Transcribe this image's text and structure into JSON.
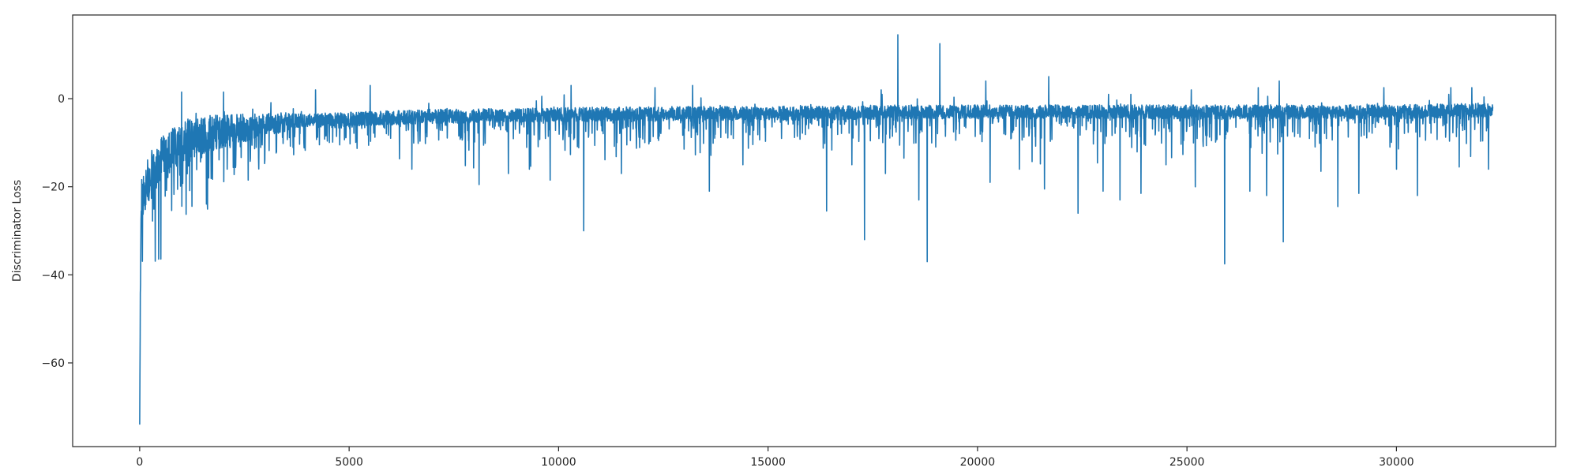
{
  "chart_data": {
    "type": "line",
    "title": "",
    "xlabel": "",
    "ylabel": "Discriminator Loss",
    "xlim": [
      -1600,
      33800
    ],
    "ylim": [
      -79,
      19
    ],
    "xticks": [
      0,
      5000,
      10000,
      15000,
      20000,
      25000,
      30000
    ],
    "xtick_labels": [
      "0",
      "5000",
      "10000",
      "15000",
      "20000",
      "25000",
      "30000"
    ],
    "yticks": [
      0,
      -20,
      -40,
      -60
    ],
    "ytick_labels": [
      "0",
      "−20",
      "−40",
      "−60"
    ],
    "grid": false,
    "legend": "none",
    "series_color": "#1f77b4",
    "series": [
      {
        "x_start": 0,
        "x_end": 32300,
        "baseline": [
          [
            0,
            -74
          ],
          [
            30,
            -25
          ],
          [
            80,
            -22
          ],
          [
            150,
            -20
          ],
          [
            250,
            -18
          ],
          [
            350,
            -16
          ],
          [
            500,
            -14
          ],
          [
            700,
            -12
          ],
          [
            900,
            -10.5
          ],
          [
            1200,
            -9
          ],
          [
            1600,
            -8
          ],
          [
            2200,
            -7
          ],
          [
            3000,
            -6
          ],
          [
            4000,
            -5
          ],
          [
            5500,
            -4.5
          ],
          [
            7000,
            -4
          ],
          [
            9000,
            -3.8
          ],
          [
            11000,
            -3.5
          ],
          [
            14000,
            -3.3
          ],
          [
            16000,
            -3.3
          ],
          [
            18000,
            -3
          ],
          [
            20000,
            -3
          ],
          [
            25000,
            -3
          ],
          [
            30000,
            -3
          ],
          [
            32300,
            -2.5
          ]
        ],
        "spikes_down": [
          [
            6500,
            -16
          ],
          [
            8100,
            -19.5
          ],
          [
            8800,
            -17
          ],
          [
            9300,
            -16
          ],
          [
            9800,
            -18.5
          ],
          [
            10300,
            -19.5
          ],
          [
            10600,
            -30
          ],
          [
            11500,
            -17
          ],
          [
            13600,
            -21
          ],
          [
            14400,
            -15
          ],
          [
            16400,
            -25.5
          ],
          [
            17000,
            -15
          ],
          [
            17300,
            -32
          ],
          [
            17800,
            -17
          ],
          [
            18600,
            -23
          ],
          [
            18800,
            -37
          ],
          [
            20300,
            -19
          ],
          [
            21000,
            -16
          ],
          [
            21600,
            -20.5
          ],
          [
            22400,
            -26
          ],
          [
            23000,
            -21
          ],
          [
            23400,
            -23
          ],
          [
            23900,
            -21.5
          ],
          [
            24500,
            -15
          ],
          [
            25200,
            -20
          ],
          [
            25900,
            -37.5
          ],
          [
            26500,
            -21
          ],
          [
            26900,
            -22
          ],
          [
            27300,
            -32.5
          ],
          [
            28200,
            -16.5
          ],
          [
            28600,
            -24.5
          ],
          [
            29100,
            -21.5
          ],
          [
            30000,
            -16
          ],
          [
            30500,
            -22
          ],
          [
            31500,
            -15.5
          ],
          [
            32200,
            -16
          ]
        ],
        "spikes_up": [
          [
            1000,
            1.5
          ],
          [
            2000,
            1.5
          ],
          [
            4200,
            2
          ],
          [
            5500,
            3
          ],
          [
            10300,
            3
          ],
          [
            12300,
            2.5
          ],
          [
            13200,
            3
          ],
          [
            17700,
            2
          ],
          [
            18100,
            14.5
          ],
          [
            19100,
            12.5
          ],
          [
            20200,
            4
          ],
          [
            21700,
            5
          ],
          [
            25100,
            2
          ],
          [
            26700,
            2.5
          ],
          [
            27200,
            4
          ],
          [
            29700,
            2.5
          ],
          [
            31300,
            2.5
          ],
          [
            31800,
            2.5
          ]
        ]
      }
    ]
  }
}
